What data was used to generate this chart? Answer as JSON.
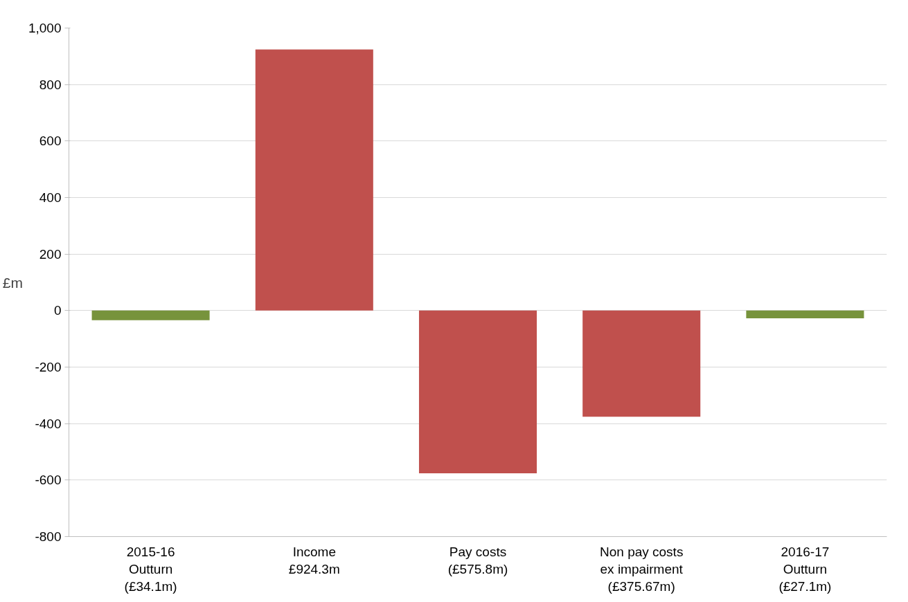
{
  "chart_data": {
    "type": "bar",
    "categories": [
      "2015-16\nOutturn\n(£34.1m)",
      "Income\n£924.3m",
      "Pay costs\n(£575.8m)",
      "Non pay costs\nex impairment\n(£375.67m)",
      "2016-17\nOutturn\n(£27.1m)"
    ],
    "values": [
      -34.1,
      924.3,
      -575.8,
      -375.67,
      -27.1
    ],
    "colors": [
      "#77933c",
      "#c0504d",
      "#c0504d",
      "#c0504d",
      "#77933c"
    ],
    "ylabel": "£m",
    "ylim": [
      -800,
      1000
    ],
    "yticks": [
      {
        "value": -800,
        "label": "-800"
      },
      {
        "value": -600,
        "label": "-600"
      },
      {
        "value": -400,
        "label": "-400"
      },
      {
        "value": -200,
        "label": "-200"
      },
      0,
      200,
      400,
      600,
      800,
      {
        "value": 1000,
        "label": "1,000"
      }
    ],
    "grid": "y"
  }
}
